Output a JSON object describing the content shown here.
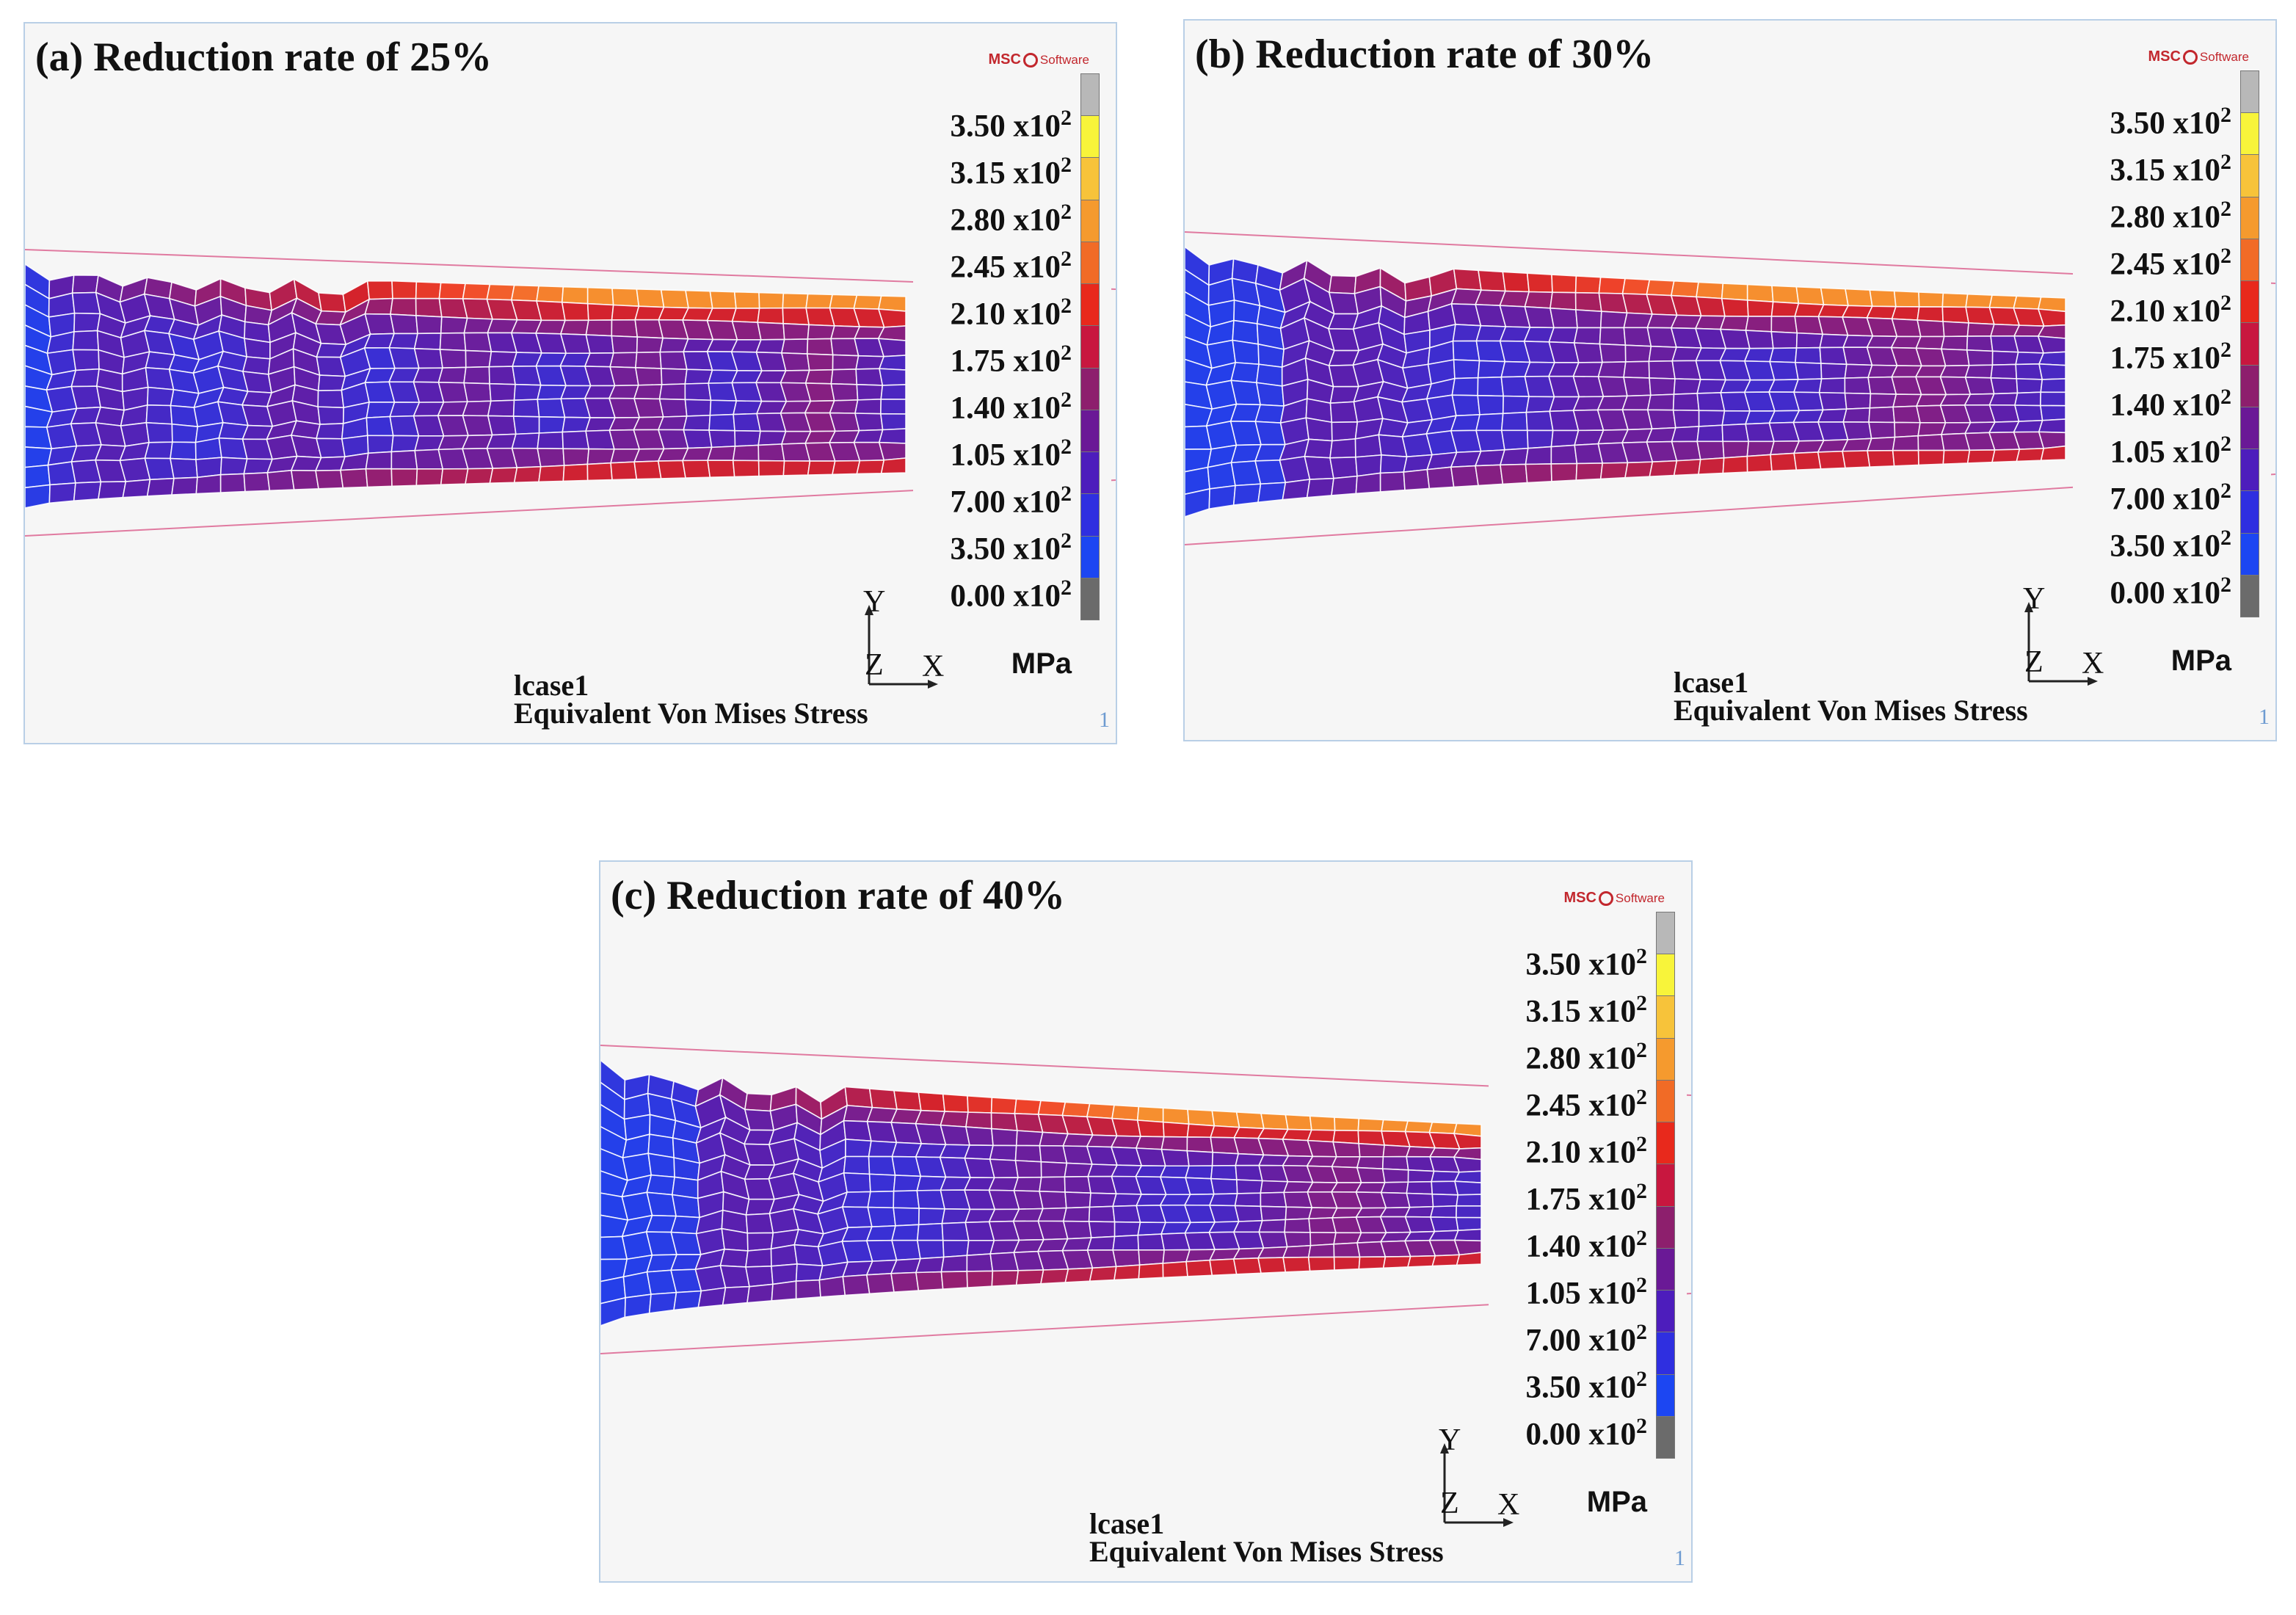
{
  "legend": {
    "mantissas": [
      "3.50",
      "3.15",
      "2.80",
      "2.45",
      "2.10",
      "1.75",
      "1.40",
      "1.05",
      "7.00",
      "3.50",
      "0.00"
    ],
    "mult": "x10",
    "exp": "2",
    "unit": "MPa",
    "colors": [
      "#b8b8b8",
      "#f8f43a",
      "#f7c33a",
      "#f59a2e",
      "#f16b26",
      "#e8291c",
      "#c8173f",
      "#8d1f6d",
      "#6a1996",
      "#4d1dbc",
      "#2f2fe0",
      "#1c46f2",
      "#6b6b6b"
    ]
  },
  "common": {
    "axis_y": "Y",
    "axis_z": "Z",
    "axis_x": "X",
    "load_case": "lcase1",
    "result_name": "Equivalent Von Mises Stress",
    "frame": "1",
    "logo": "MSC Software"
  },
  "panels": [
    {
      "title": "(a) Reduction rate of 25%",
      "reduction_percent": 25
    },
    {
      "title": "(b) Reduction rate of 30%",
      "reduction_percent": 30
    },
    {
      "title": "(c) Reduction rate of 40%",
      "reduction_percent": 40
    }
  ]
}
